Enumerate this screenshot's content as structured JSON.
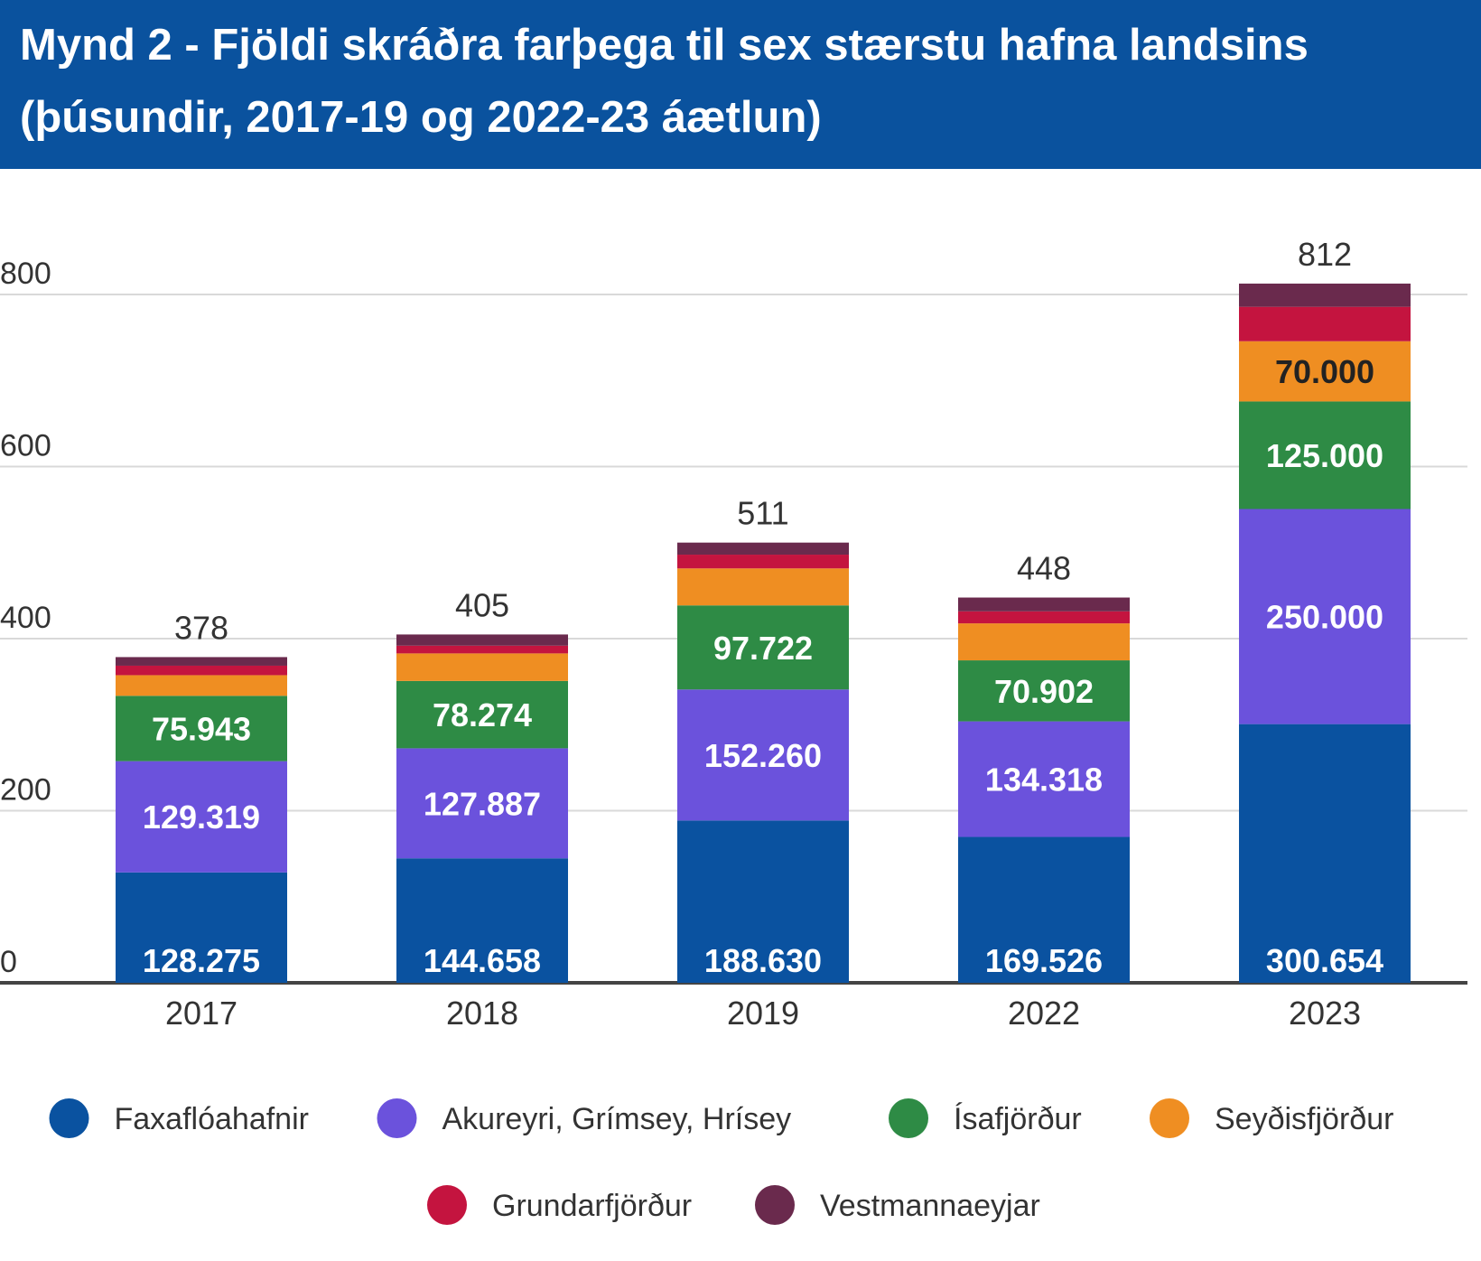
{
  "chart_data": {
    "type": "bar",
    "stacked": true,
    "title": "Mynd 2 - Fjöldi skráðra farþega til sex stærstu hafna landsins",
    "subtitle": "(þúsundir, 2017-19 og 2022-23 áætlun)",
    "categories": [
      "2017",
      "2018",
      "2019",
      "2022",
      "2023"
    ],
    "totals": [
      "378",
      "405",
      "511",
      "448",
      "812"
    ],
    "ylim": [
      0,
      800
    ],
    "yticks": [
      0,
      200,
      400,
      600,
      800
    ],
    "ytick_labels": [
      "0",
      "200",
      "400",
      "600",
      "800"
    ],
    "grid": true,
    "legend_position": "bottom",
    "series": [
      {
        "name": "Faxaflóahafnir",
        "color": "#0a52a0",
        "label_color": "#ffffff",
        "values": [
          128.275,
          144.658,
          188.63,
          169.526,
          300.654
        ],
        "labels": [
          "128.275",
          "144.658",
          "188.630",
          "169.526",
          "300.654"
        ]
      },
      {
        "name": "Akureyri, Grímsey, Hrísey",
        "color": "#6b52dc",
        "label_color": "#ffffff",
        "values": [
          129.319,
          127.887,
          152.26,
          134.318,
          250.0
        ],
        "labels": [
          "129.319",
          "127.887",
          "152.260",
          "134.318",
          "250.000"
        ]
      },
      {
        "name": "Ísafjörður",
        "color": "#2e8b45",
        "label_color": "#ffffff",
        "values": [
          75.943,
          78.274,
          97.722,
          70.902,
          125.0
        ],
        "labels": [
          "75.943",
          "78.274",
          "97.722",
          "70.902",
          "125.000"
        ]
      },
      {
        "name": "Seyðisfjörður",
        "color": "#ef8e22",
        "label_color": "#222222",
        "values": [
          24,
          32,
          43,
          43,
          70.0
        ],
        "labels": [
          "",
          "",
          "",
          "",
          "70.000"
        ]
      },
      {
        "name": "Grundarfjörður",
        "color": "#c4143f",
        "label_color": "#ffffff",
        "values": [
          11,
          9,
          16,
          14,
          40
        ],
        "labels": [
          "",
          "",
          "",
          "",
          ""
        ]
      },
      {
        "name": "Vestmannaeyjar",
        "color": "#6a2a4d",
        "label_color": "#ffffff",
        "values": [
          10,
          13,
          14,
          16,
          27
        ],
        "labels": [
          "",
          "",
          "",
          "",
          ""
        ]
      }
    ]
  }
}
